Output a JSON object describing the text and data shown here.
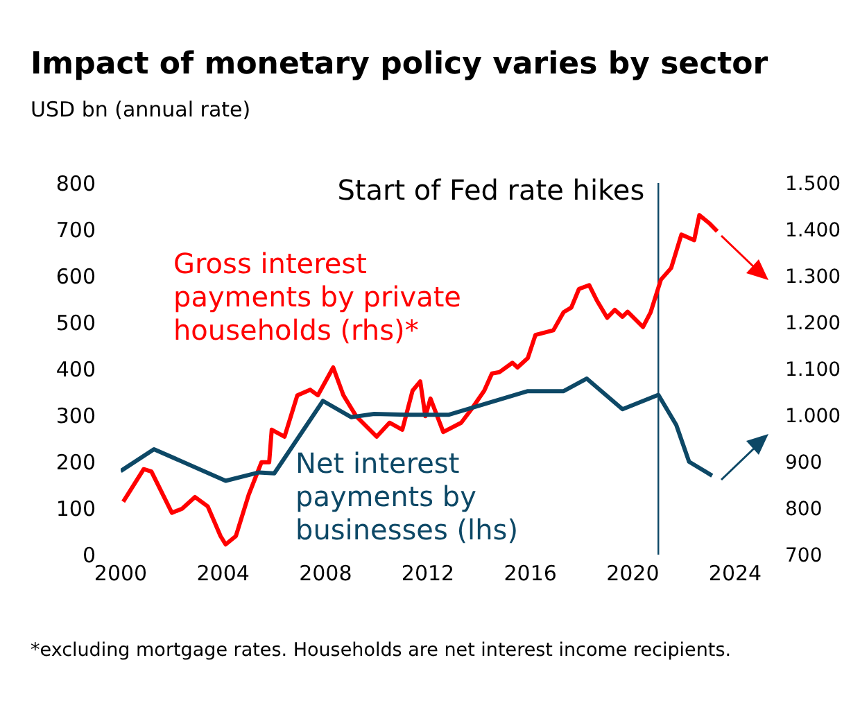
{
  "chart_data": {
    "type": "line",
    "title": "Impact of monetary policy varies by sector",
    "subtitle": "USD bn (annual rate)",
    "xlim": [
      2000,
      2024
    ],
    "xticks": [
      2000,
      2004,
      2008,
      2012,
      2016,
      2020,
      2024
    ],
    "ylim": [
      0,
      800
    ],
    "yticks": [
      0,
      100,
      200,
      300,
      400,
      500,
      600,
      700,
      800
    ],
    "y2lim": [
      700,
      1500
    ],
    "y2ticks": [
      700,
      800,
      900,
      {
        "value": 1000,
        "label": "1.000"
      },
      {
        "value": 1100,
        "label": "1.100"
      },
      {
        "value": 1200,
        "label": "1.200"
      },
      {
        "value": 1300,
        "label": "1.300"
      },
      {
        "value": 1400,
        "label": "1.400"
      },
      {
        "value": 1500,
        "label": "1.500"
      }
    ],
    "series": [
      {
        "name": "Gross interest payments by private households (rhs)*",
        "color": "#ff0000",
        "axis": "y2",
        "x": [
          2000.1,
          2000.9,
          2001.2,
          2002.0,
          2002.4,
          2002.9,
          2003.4,
          2003.9,
          2004.1,
          2004.5,
          2005.0,
          2005.5,
          2005.8,
          2005.9,
          2006.4,
          2006.9,
          2007.4,
          2007.7,
          2008.3,
          2008.7,
          2009.2,
          2010.0,
          2010.5,
          2011.0,
          2011.4,
          2011.7,
          2011.9,
          2012.1,
          2012.6,
          2013.3,
          2013.7,
          2014.2,
          2014.5,
          2014.8,
          2015.3,
          2015.5,
          2015.9,
          2016.2,
          2016.9,
          2017.3,
          2017.6,
          2017.9,
          2018.3,
          2018.6,
          2019.0,
          2019.3,
          2019.6,
          2019.8,
          2020.4,
          2020.7,
          2021.1,
          2021.5,
          2021.9,
          2022.4,
          2022.6,
          2023.0,
          2023.3
        ],
        "values": [
          814,
          884,
          879,
          790,
          799,
          824,
          804,
          740,
          722,
          740,
          829,
          899,
          899,
          969,
          954,
          1043,
          1055,
          1043,
          1103,
          1043,
          998,
          954,
          984,
          969,
          1053,
          1073,
          998,
          1036,
          964,
          984,
          1013,
          1053,
          1090,
          1093,
          1113,
          1103,
          1123,
          1173,
          1183,
          1222,
          1232,
          1272,
          1280,
          1247,
          1210,
          1227,
          1212,
          1223,
          1190,
          1222,
          1292,
          1317,
          1389,
          1377,
          1431,
          1413,
          1396
        ]
      },
      {
        "name": "Net interest payments by businesses (lhs)",
        "color": "#0d4866",
        "x": [
          2000.0,
          2001.3,
          2004.1,
          2005.4,
          2006.0,
          2007.9,
          2009.0,
          2009.9,
          2011.2,
          2012.8,
          2015.9,
          2017.3,
          2018.2,
          2019.6,
          2021.0,
          2021.7,
          2022.2,
          2023.1
        ],
        "values": [
          180,
          227,
          159,
          177,
          175,
          331,
          296,
          303,
          301,
          301,
          352,
          352,
          379,
          313,
          344,
          279,
          200,
          170
        ]
      }
    ],
    "ref_lines": [
      {
        "axis": "x",
        "value": 2021.0,
        "label": "Start of Fed rate hikes",
        "color": "#0d4866"
      }
    ],
    "annotations": [
      "*excluding mortgage rates. Households are net interest income recipients."
    ]
  }
}
